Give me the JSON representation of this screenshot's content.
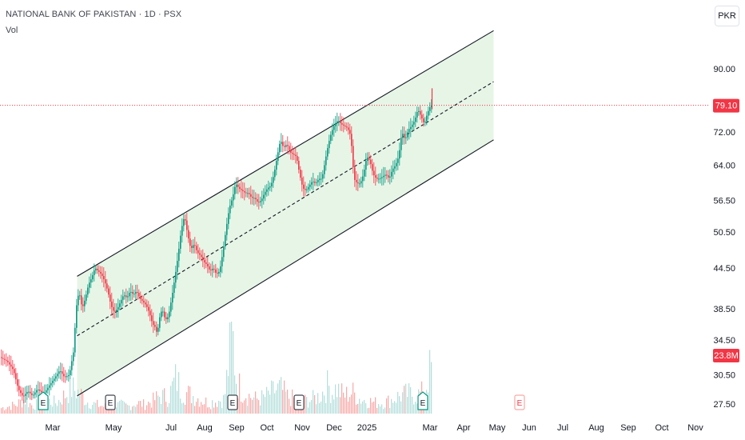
{
  "header": {
    "title": "NATIONAL BANK OF PAKISTAN · 1D · PSX",
    "volume_label": "Vol",
    "currency_button": "PKR"
  },
  "colors": {
    "up": "#089981",
    "down": "#f23645",
    "volume_up": "#b2dfdb",
    "volume_down": "#f7a9a7",
    "channel_fill": "#e3f3e3",
    "channel_line": "#131722",
    "price_line": "#f23645",
    "price_badge": "#f23645",
    "text": "#131722"
  },
  "chart_data": {
    "type": "candlestick",
    "y_scale": "log",
    "y_ticks": [
      "90.00",
      "72.00",
      "64.00",
      "56.50",
      "50.50",
      "44.50",
      "38.50",
      "34.50",
      "30.50",
      "27.50"
    ],
    "x_ticks": [
      "Mar",
      "May",
      "Jul",
      "Aug",
      "Sep",
      "Oct",
      "Nov",
      "Dec",
      "2025",
      "Mar",
      "Apr",
      "May",
      "Jun",
      "Jul",
      "Aug",
      "Sep",
      "Oct",
      "Nov"
    ],
    "last_price": "79.10",
    "last_volume": "23.8M",
    "earnings_markers": [
      {
        "label": "E",
        "kind": "up"
      },
      {
        "label": "E",
        "kind": "neutral"
      },
      {
        "label": "E",
        "kind": "neutral"
      },
      {
        "label": "E",
        "kind": "neutral"
      },
      {
        "label": "E",
        "kind": "up"
      },
      {
        "label": "E",
        "kind": "future"
      }
    ],
    "channel": {
      "upper": [
        [
          96,
          43.2
        ],
        [
          617,
          103
        ]
      ],
      "middle": [
        [
          96,
          35.0
        ],
        [
          617,
          86
        ]
      ],
      "lower": [
        [
          96,
          28.3
        ],
        [
          617,
          70
        ]
      ]
    },
    "price_path": [
      [
        0,
        32.5
      ],
      [
        10,
        32
      ],
      [
        18,
        31
      ],
      [
        24,
        29
      ],
      [
        30,
        28.2
      ],
      [
        36,
        28.8
      ],
      [
        42,
        28.3
      ],
      [
        48,
        29
      ],
      [
        56,
        28.5
      ],
      [
        64,
        29.5
      ],
      [
        70,
        30.2
      ],
      [
        76,
        31
      ],
      [
        82,
        30.2
      ],
      [
        88,
        30.5
      ],
      [
        93,
        33
      ],
      [
        97,
        39
      ],
      [
        100,
        41
      ],
      [
        104,
        38.5
      ],
      [
        108,
        40
      ],
      [
        112,
        42
      ],
      [
        116,
        43
      ],
      [
        120,
        44.5
      ],
      [
        124,
        44
      ],
      [
        128,
        43.5
      ],
      [
        132,
        42.5
      ],
      [
        136,
        41
      ],
      [
        140,
        39
      ],
      [
        144,
        38
      ],
      [
        148,
        38.5
      ],
      [
        152,
        39.5
      ],
      [
        156,
        40.5
      ],
      [
        160,
        40
      ],
      [
        164,
        41
      ],
      [
        168,
        40.5
      ],
      [
        172,
        41
      ],
      [
        176,
        40
      ],
      [
        180,
        39.5
      ],
      [
        184,
        39
      ],
      [
        188,
        38
      ],
      [
        192,
        36.5
      ],
      [
        196,
        36
      ],
      [
        198,
        35
      ],
      [
        200,
        37
      ],
      [
        204,
        38.5
      ],
      [
        208,
        37
      ],
      [
        212,
        37.5
      ],
      [
        216,
        40
      ],
      [
        220,
        43
      ],
      [
        224,
        46.5
      ],
      [
        228,
        51
      ],
      [
        232,
        53.5
      ],
      [
        236,
        50
      ],
      [
        240,
        47.5
      ],
      [
        244,
        48.5
      ],
      [
        248,
        47
      ],
      [
        252,
        46.5
      ],
      [
        256,
        45.5
      ],
      [
        260,
        45
      ],
      [
        264,
        44
      ],
      [
        268,
        44.5
      ],
      [
        272,
        43.5
      ],
      [
        276,
        44
      ],
      [
        280,
        47
      ],
      [
        284,
        51
      ],
      [
        288,
        55
      ],
      [
        292,
        57
      ],
      [
        296,
        60
      ],
      [
        300,
        59
      ],
      [
        304,
        58.5
      ],
      [
        308,
        58
      ],
      [
        312,
        58
      ],
      [
        316,
        57
      ],
      [
        320,
        57
      ],
      [
        324,
        56
      ],
      [
        328,
        56.5
      ],
      [
        332,
        58
      ],
      [
        336,
        59
      ],
      [
        340,
        59.5
      ],
      [
        344,
        62
      ],
      [
        348,
        66
      ],
      [
        352,
        70
      ],
      [
        356,
        68
      ],
      [
        360,
        69
      ],
      [
        364,
        67
      ],
      [
        368,
        66.5
      ],
      [
        372,
        66
      ],
      [
        376,
        62
      ],
      [
        380,
        59
      ],
      [
        384,
        58.5
      ],
      [
        388,
        59.5
      ],
      [
        392,
        60.5
      ],
      [
        396,
        60
      ],
      [
        400,
        61
      ],
      [
        404,
        61
      ],
      [
        408,
        65
      ],
      [
        412,
        69
      ],
      [
        416,
        72
      ],
      [
        420,
        74
      ],
      [
        424,
        75
      ],
      [
        428,
        74
      ],
      [
        432,
        73.5
      ],
      [
        436,
        73
      ],
      [
        440,
        71
      ],
      [
        444,
        61
      ],
      [
        448,
        60
      ],
      [
        452,
        60
      ],
      [
        456,
        62
      ],
      [
        460,
        66
      ],
      [
        464,
        65
      ],
      [
        468,
        62
      ],
      [
        472,
        61
      ],
      [
        476,
        61
      ],
      [
        480,
        61.5
      ],
      [
        484,
        62
      ],
      [
        488,
        61
      ],
      [
        492,
        63
      ],
      [
        496,
        64
      ],
      [
        500,
        66
      ],
      [
        504,
        72
      ],
      [
        508,
        70
      ],
      [
        512,
        72.5
      ],
      [
        516,
        73.5
      ],
      [
        520,
        75
      ],
      [
        524,
        78
      ],
      [
        528,
        76
      ],
      [
        532,
        74
      ],
      [
        536,
        77
      ],
      [
        540,
        79.1
      ]
    ],
    "volume_path": [
      [
        0,
        0.15
      ],
      [
        10,
        0.2
      ],
      [
        20,
        0.25
      ],
      [
        30,
        0.4
      ],
      [
        40,
        0.22
      ],
      [
        50,
        0.3
      ],
      [
        60,
        0.35
      ],
      [
        70,
        0.3
      ],
      [
        80,
        0.5
      ],
      [
        90,
        0.7
      ],
      [
        100,
        0.55
      ],
      [
        110,
        0.3
      ],
      [
        120,
        0.25
      ],
      [
        130,
        0.2
      ],
      [
        140,
        0.22
      ],
      [
        150,
        0.25
      ],
      [
        160,
        0.2
      ],
      [
        170,
        0.3
      ],
      [
        180,
        0.25
      ],
      [
        190,
        0.35
      ],
      [
        200,
        0.5
      ],
      [
        210,
        0.45
      ],
      [
        220,
        1.0
      ],
      [
        225,
        0.7
      ],
      [
        230,
        0.6
      ],
      [
        240,
        0.5
      ],
      [
        250,
        0.4
      ],
      [
        260,
        0.3
      ],
      [
        270,
        0.35
      ],
      [
        280,
        0.4
      ],
      [
        290,
        2.2
      ],
      [
        295,
        1.0
      ],
      [
        300,
        0.7
      ],
      [
        310,
        0.5
      ],
      [
        320,
        0.4
      ],
      [
        330,
        0.45
      ],
      [
        340,
        0.6
      ],
      [
        350,
        0.7
      ],
      [
        360,
        0.45
      ],
      [
        370,
        0.4
      ],
      [
        380,
        0.35
      ],
      [
        390,
        0.4
      ],
      [
        400,
        0.5
      ],
      [
        410,
        0.8
      ],
      [
        415,
        0.6
      ],
      [
        420,
        0.7
      ],
      [
        430,
        0.5
      ],
      [
        440,
        0.6
      ],
      [
        450,
        0.4
      ],
      [
        460,
        0.35
      ],
      [
        470,
        0.3
      ],
      [
        480,
        0.3
      ],
      [
        490,
        0.4
      ],
      [
        500,
        0.5
      ],
      [
        510,
        0.55
      ],
      [
        520,
        0.5
      ],
      [
        530,
        0.6
      ],
      [
        538,
        1.25
      ]
    ]
  }
}
